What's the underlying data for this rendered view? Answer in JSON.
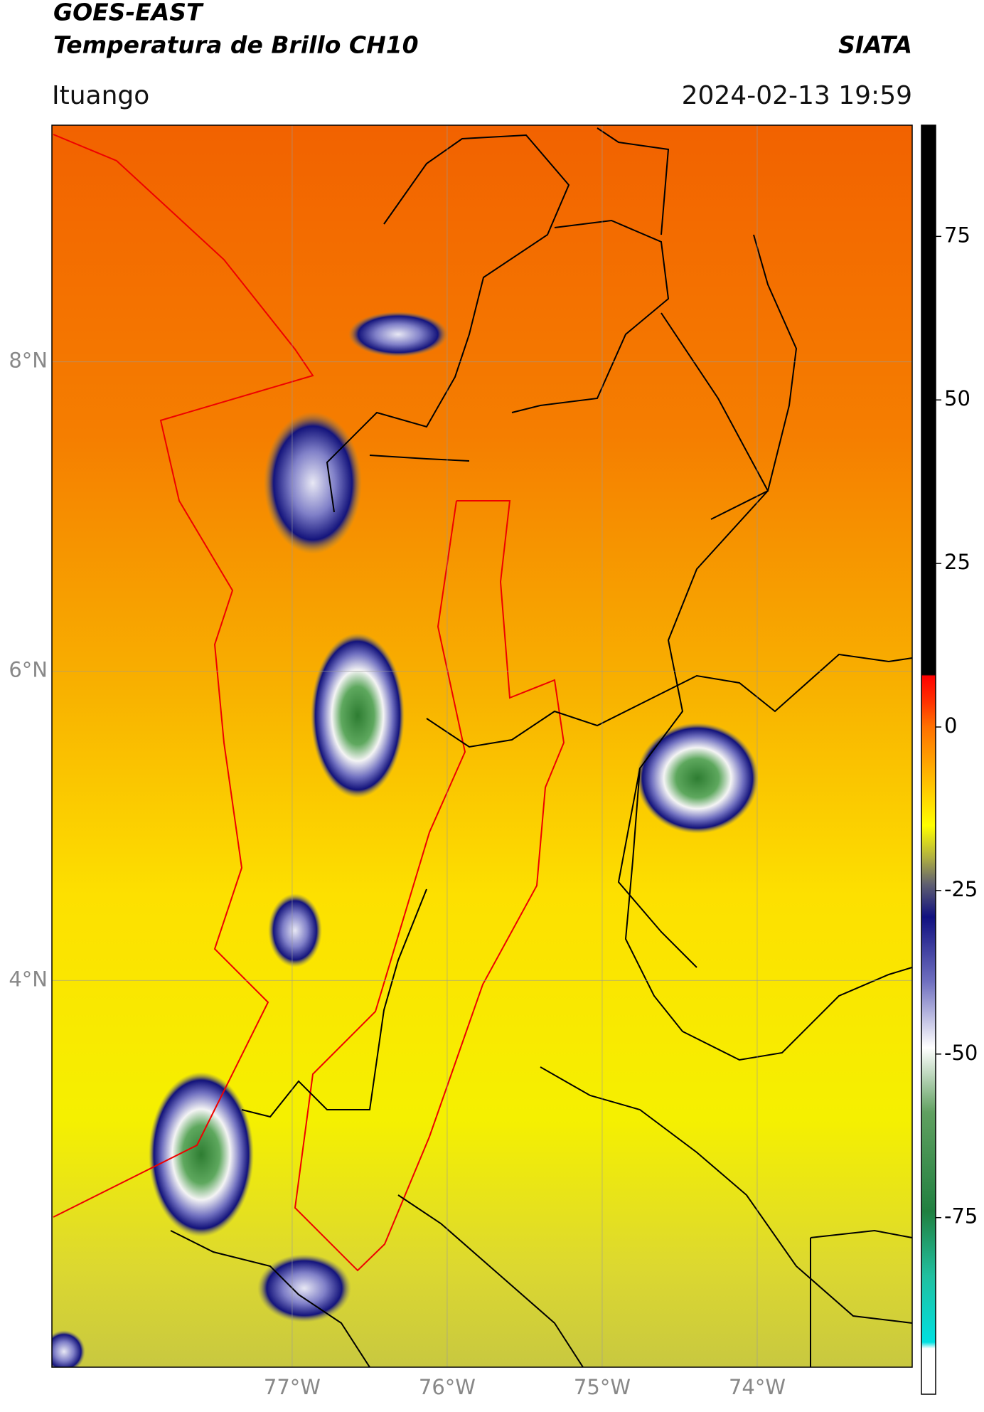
{
  "header": {
    "title": "GOES-EAST",
    "subtitle": "Temperatura de Brillo CH10",
    "source": "SIATA",
    "location": "Ituango",
    "datetime": "2024-02-13 19:59"
  },
  "map": {
    "xlim": [
      -78.55,
      -73.0
    ],
    "ylim": [
      1.5,
      9.53
    ],
    "xticks": [
      {
        "value": -77,
        "label": "77°W"
      },
      {
        "value": -76,
        "label": "76°W"
      },
      {
        "value": -75,
        "label": "75°W"
      },
      {
        "value": -74,
        "label": "74°W"
      }
    ],
    "yticks": [
      {
        "value": 8,
        "label": "8°N"
      },
      {
        "value": 6,
        "label": "6°N"
      },
      {
        "value": 4,
        "label": "4°N"
      }
    ],
    "grid": true
  },
  "colorbar": {
    "lim": [
      -102,
      92
    ],
    "ticks": [
      75,
      50,
      25,
      0,
      -25,
      -50,
      -75
    ]
  }
}
